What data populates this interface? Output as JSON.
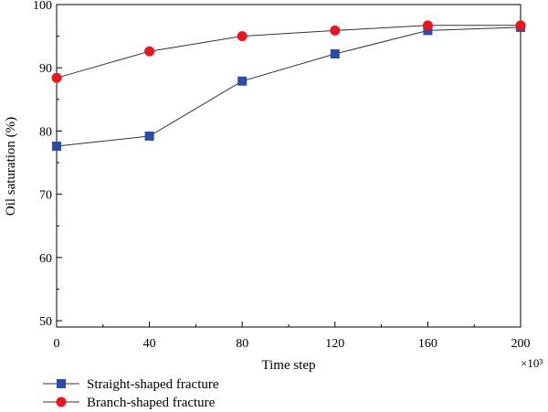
{
  "chart_data": {
    "type": "line",
    "xlabel": "Time step",
    "ylabel": "Oil saturation (%)",
    "x_multiplier": "×10³",
    "x": [
      0,
      40,
      80,
      120,
      160,
      200
    ],
    "xlim": [
      0,
      200
    ],
    "ylim": [
      49,
      100
    ],
    "xticks": [
      0,
      40,
      80,
      120,
      160,
      200
    ],
    "yticks": [
      50,
      60,
      70,
      80,
      90,
      100
    ],
    "grid": false,
    "legend_position": "bottom-left",
    "series": [
      {
        "name": "Straight-shaped fracture",
        "marker": "square",
        "color": "#2b4ca8",
        "values": [
          77.6,
          79.2,
          87.9,
          92.2,
          95.9,
          96.4
        ]
      },
      {
        "name": "Branch-shaped fracture",
        "marker": "circle",
        "color": "#e8161f",
        "values": [
          88.4,
          92.6,
          95.0,
          95.9,
          96.7,
          96.7
        ]
      }
    ]
  }
}
